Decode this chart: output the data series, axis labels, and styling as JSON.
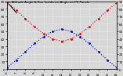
{
  "title": "Sun Altitude Angle & Sun Incidence Angle on PV Panels",
  "x_values": [
    6,
    7,
    8,
    9,
    10,
    11,
    12,
    13,
    14,
    15,
    16,
    17,
    18
  ],
  "altitude_y": [
    2,
    12,
    23,
    34,
    43,
    50,
    53,
    50,
    43,
    34,
    23,
    12,
    2
  ],
  "incidence_y": [
    88,
    78,
    67,
    56,
    47,
    40,
    37,
    40,
    47,
    56,
    67,
    78,
    88
  ],
  "altitude_color": "#0000dd",
  "incidence_color": "#dd0000",
  "bg_color": "#d8d8d8",
  "ylim": [
    0,
    90
  ],
  "xlim": [
    6,
    18
  ],
  "yticks_left": [
    0,
    10,
    20,
    30,
    40,
    50,
    60,
    70,
    80,
    90
  ],
  "yticks_right": [
    0,
    10,
    20,
    30,
    40,
    50,
    60,
    70,
    80,
    90
  ],
  "grid_color": "#ffffff",
  "line_width": 0.8,
  "marker_size": 2.0,
  "title_fontsize": 2.8,
  "tick_fontsize": 3.0
}
